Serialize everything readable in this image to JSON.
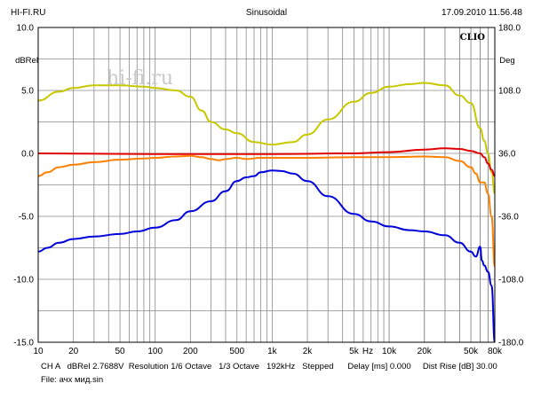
{
  "header": {
    "left": "HI-FI.RU",
    "center": "Sinusoidal",
    "right": "17.09.2010 11.56.48"
  },
  "watermark": "hi-fi.ru",
  "brand": "CLIO",
  "footer": {
    "line1": "CH A   dBRel 2.7688V  Resolution 1/6 Octave   1/3 Octave   192kHz   Stepped      Delay [ms] 0.000     Dist Rise [dB] 30.00",
    "line2": "File: ачх мид.sin"
  },
  "chart_data": {
    "type": "line",
    "x_scale": "log",
    "xlim": [
      10,
      80000
    ],
    "ylim": [
      -15,
      10
    ],
    "ylim_right": [
      -180,
      180
    ],
    "ylabel": "dBRel",
    "ylabel_right": "Deg",
    "xlabel_unit": "Hz",
    "grid": true,
    "x_tick_labels": [
      {
        "v": 10,
        "label": "10"
      },
      {
        "v": 20,
        "label": "20"
      },
      {
        "v": 50,
        "label": "50"
      },
      {
        "v": 100,
        "label": "100"
      },
      {
        "v": 200,
        "label": "200"
      },
      {
        "v": 500,
        "label": "500"
      },
      {
        "v": 1000,
        "label": "1k"
      },
      {
        "v": 2000,
        "label": "2k"
      },
      {
        "v": 5000,
        "label": "5k"
      },
      {
        "v": 10000,
        "label": "10k"
      },
      {
        "v": 20000,
        "label": "20k"
      },
      {
        "v": 50000,
        "label": "50k"
      },
      {
        "v": 80000,
        "label": "80k"
      }
    ],
    "y_tick_labels": [
      {
        "v": 10,
        "label": "10.0"
      },
      {
        "v": 5,
        "label": "5.0"
      },
      {
        "v": 0,
        "label": "0.0"
      },
      {
        "v": -5,
        "label": "-5.0"
      },
      {
        "v": -10,
        "label": "-10.0"
      },
      {
        "v": -15,
        "label": "-15.0"
      }
    ],
    "y2_tick_labels": [
      {
        "v": 180,
        "label": "180.0"
      },
      {
        "v": 108,
        "label": "108.0"
      },
      {
        "v": 36,
        "label": "36.0"
      },
      {
        "v": -36,
        "label": "-36.0"
      },
      {
        "v": -108,
        "label": "-108.0"
      },
      {
        "v": -180,
        "label": "-180.0"
      }
    ],
    "series": [
      {
        "color": "#c8c800",
        "points": [
          [
            10,
            4.2
          ],
          [
            15,
            4.9
          ],
          [
            20,
            5.2
          ],
          [
            30,
            5.4
          ],
          [
            50,
            5.4
          ],
          [
            80,
            5.3
          ],
          [
            100,
            5.2
          ],
          [
            150,
            5.0
          ],
          [
            200,
            4.5
          ],
          [
            250,
            3.4
          ],
          [
            300,
            2.5
          ],
          [
            400,
            1.9
          ],
          [
            500,
            1.6
          ],
          [
            700,
            0.9
          ],
          [
            1000,
            0.7
          ],
          [
            1500,
            0.9
          ],
          [
            2000,
            1.5
          ],
          [
            3000,
            2.7
          ],
          [
            5000,
            4.1
          ],
          [
            7000,
            4.8
          ],
          [
            10000,
            5.3
          ],
          [
            15000,
            5.5
          ],
          [
            20000,
            5.6
          ],
          [
            30000,
            5.4
          ],
          [
            40000,
            4.6
          ],
          [
            50000,
            4.0
          ],
          [
            60000,
            2.0
          ],
          [
            65000,
            1.0
          ],
          [
            70000,
            0.0
          ],
          [
            75000,
            -1.5
          ],
          [
            80000,
            -3.2
          ]
        ]
      },
      {
        "color": "#e00000",
        "points": [
          [
            10,
            0.0
          ],
          [
            100,
            -0.05
          ],
          [
            1000,
            -0.05
          ],
          [
            5000,
            0.0
          ],
          [
            10000,
            0.1
          ],
          [
            20000,
            0.3
          ],
          [
            30000,
            0.4
          ],
          [
            40000,
            0.35
          ],
          [
            50000,
            0.2
          ],
          [
            60000,
            0.0
          ],
          [
            65000,
            -0.3
          ],
          [
            70000,
            -0.8
          ],
          [
            75000,
            -1.3
          ],
          [
            80000,
            -1.8
          ]
        ]
      },
      {
        "color": "#ff8000",
        "points": [
          [
            10,
            -1.8
          ],
          [
            12,
            -1.5
          ],
          [
            15,
            -1.1
          ],
          [
            20,
            -0.9
          ],
          [
            30,
            -0.7
          ],
          [
            50,
            -0.5
          ],
          [
            80,
            -0.4
          ],
          [
            100,
            -0.35
          ],
          [
            150,
            -0.25
          ],
          [
            200,
            -0.2
          ],
          [
            250,
            -0.3
          ],
          [
            300,
            -0.45
          ],
          [
            350,
            -0.55
          ],
          [
            400,
            -0.45
          ],
          [
            500,
            -0.35
          ],
          [
            600,
            -0.45
          ],
          [
            800,
            -0.35
          ],
          [
            1000,
            -0.35
          ],
          [
            2000,
            -0.35
          ],
          [
            5000,
            -0.3
          ],
          [
            10000,
            -0.3
          ],
          [
            20000,
            -0.25
          ],
          [
            30000,
            -0.3
          ],
          [
            40000,
            -0.6
          ],
          [
            50000,
            -1.1
          ],
          [
            55000,
            -1.6
          ],
          [
            60000,
            -2.3
          ],
          [
            65000,
            -2.3
          ],
          [
            70000,
            -3.2
          ],
          [
            75000,
            -5.0
          ],
          [
            80000,
            -9.0
          ]
        ]
      },
      {
        "color": "#0000dd",
        "points": [
          [
            10,
            -7.8
          ],
          [
            12,
            -7.5
          ],
          [
            15,
            -7.1
          ],
          [
            20,
            -6.8
          ],
          [
            30,
            -6.6
          ],
          [
            50,
            -6.4
          ],
          [
            70,
            -6.2
          ],
          [
            100,
            -5.9
          ],
          [
            150,
            -5.3
          ],
          [
            200,
            -4.6
          ],
          [
            300,
            -3.8
          ],
          [
            400,
            -3.0
          ],
          [
            500,
            -2.2
          ],
          [
            600,
            -1.9
          ],
          [
            700,
            -1.8
          ],
          [
            800,
            -1.5
          ],
          [
            1000,
            -1.35
          ],
          [
            1200,
            -1.4
          ],
          [
            1500,
            -1.6
          ],
          [
            2000,
            -2.2
          ],
          [
            3000,
            -3.4
          ],
          [
            5000,
            -4.8
          ],
          [
            7000,
            -5.4
          ],
          [
            10000,
            -5.8
          ],
          [
            15000,
            -6.1
          ],
          [
            20000,
            -6.2
          ],
          [
            30000,
            -6.5
          ],
          [
            40000,
            -7.1
          ],
          [
            50000,
            -7.8
          ],
          [
            55000,
            -8.2
          ],
          [
            60000,
            -7.4
          ],
          [
            62000,
            -8.5
          ],
          [
            65000,
            -8.9
          ],
          [
            70000,
            -9.4
          ],
          [
            75000,
            -10.5
          ],
          [
            80000,
            -15.0
          ]
        ]
      }
    ]
  }
}
